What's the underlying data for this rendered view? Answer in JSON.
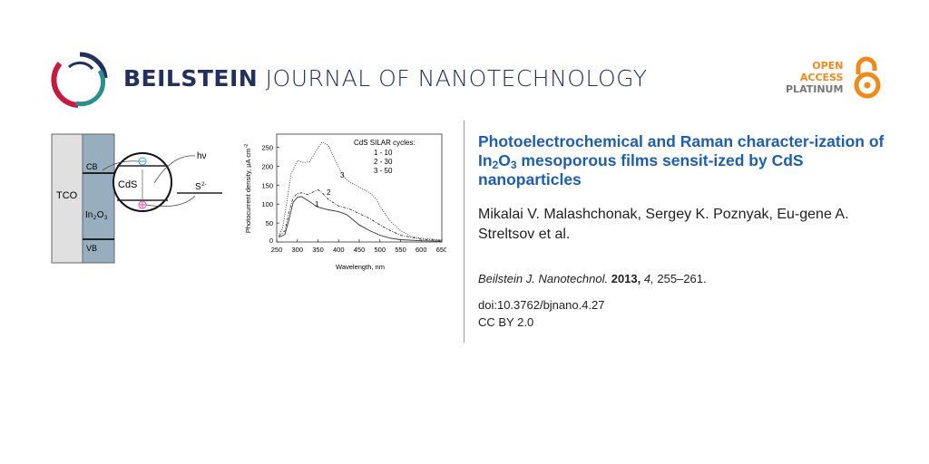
{
  "header": {
    "journal_bold": "BEILSTEIN",
    "journal_rest": " JOURNAL OF NANOTECHNOLOGY",
    "badge": {
      "line1": "OPEN",
      "line2": "ACCESS",
      "line3": "PLATINUM"
    },
    "colors": {
      "navy": "#22305e",
      "red": "#c8193f",
      "teal": "#2a8f8f",
      "orange": "#f08a1c"
    }
  },
  "diagram": {
    "tco": "TCO",
    "in2o3": "In",
    "in2o3_sub1": "2",
    "in2o3_o": "O",
    "in2o3_sub2": "3",
    "cb": "CB",
    "vb": "VB",
    "cds": "CdS",
    "hv": "hν",
    "s": "S",
    "s_sup": "2-"
  },
  "article": {
    "title_1": "Photoelectrochemical and Raman character-ization of In",
    "title_sub1": "2",
    "title_2": "O",
    "title_sub2": "3",
    "title_3": " mesoporous films sensit-ized by CdS nanoparticles",
    "authors": "Mikalai V. Malashchonak, Sergey K. Poznyak, Eu-gene A. Streltsov et al.",
    "journal_abbrev": "Beilstein J. Nanotechnol.",
    "year": "2013,",
    "volume": "4,",
    "pages": "255–261.",
    "doi": "doi:10.3762/bjnano.4.27",
    "license": "CC BY 2.0"
  },
  "chart_data": {
    "type": "line",
    "xlabel": "Wavelength, nm",
    "ylabel": "Photocurrent density, μA cm",
    "ylabel_sup": "-2",
    "xlim": [
      250,
      650
    ],
    "ylim": [
      0,
      285
    ],
    "xticks": [
      "250",
      "300",
      "350",
      "400",
      "450",
      "500",
      "550",
      "600",
      "650"
    ],
    "yticks": [
      "0",
      "50",
      "100",
      "150",
      "200",
      "250"
    ],
    "legend_title": "CdS SILAR cycles:",
    "legend_entries": [
      "1 - 10",
      "2 - 30",
      "3 - 50"
    ],
    "series": [
      {
        "name": "1",
        "style": "solid",
        "x": [
          255,
          270,
          280,
          290,
          300,
          310,
          325,
          350,
          375,
          400,
          420,
          450,
          475,
          500,
          525,
          550,
          600,
          650
        ],
        "y": [
          12,
          20,
          60,
          105,
          118,
          120,
          110,
          92,
          85,
          80,
          72,
          45,
          30,
          18,
          10,
          6,
          3,
          2
        ]
      },
      {
        "name": "2",
        "style": "dashdot",
        "x": [
          255,
          270,
          280,
          290,
          300,
          310,
          325,
          350,
          360,
          375,
          400,
          425,
          450,
          475,
          500,
          525,
          550,
          600,
          650
        ],
        "y": [
          15,
          30,
          80,
          118,
          128,
          130,
          125,
          138,
          130,
          112,
          95,
          88,
          75,
          62,
          45,
          30,
          18,
          7,
          4
        ]
      },
      {
        "name": "3",
        "style": "dotted",
        "x": [
          255,
          265,
          275,
          285,
          300,
          315,
          330,
          345,
          360,
          375,
          390,
          410,
          425,
          450,
          475,
          490,
          500,
          525,
          550,
          575,
          600,
          650
        ],
        "y": [
          15,
          40,
          110,
          180,
          215,
          210,
          212,
          240,
          265,
          255,
          220,
          175,
          160,
          145,
          130,
          115,
          95,
          55,
          30,
          15,
          10,
          5
        ]
      }
    ]
  }
}
